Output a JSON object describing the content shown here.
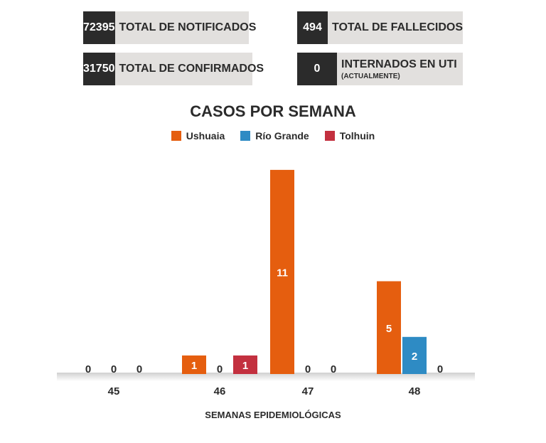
{
  "stats": {
    "notificados": {
      "value": "72395",
      "label": "TOTAL DE NOTIFICADOS"
    },
    "confirmados": {
      "value": "31750",
      "label": "TOTAL DE CONFIRMADOS"
    },
    "fallecidos": {
      "value": "494",
      "label": "TOTAL DE FALLECIDOS"
    },
    "uti": {
      "value": "0",
      "label": "INTERNADOS EN UTI",
      "sub": "(ACTUALMENTE)"
    }
  },
  "colors": {
    "ushuaia": "#e55e0f",
    "rio_grande": "#2e8bc4",
    "tolhuin": "#c3303f"
  },
  "chart_data": {
    "type": "bar",
    "title": "CASOS POR SEMANA",
    "xlabel": "SEMANAS EPIDEMIOLÓGICAS",
    "categories": [
      "45",
      "46",
      "47",
      "48"
    ],
    "series": [
      {
        "name": "Ushuaia",
        "values": [
          0,
          1,
          11,
          5
        ]
      },
      {
        "name": "Río Grande",
        "values": [
          0,
          0,
          0,
          2
        ]
      },
      {
        "name": "Tolhuin",
        "values": [
          0,
          1,
          0,
          0
        ]
      }
    ],
    "ylim": [
      0,
      11
    ],
    "legend": "top",
    "grid": false
  }
}
